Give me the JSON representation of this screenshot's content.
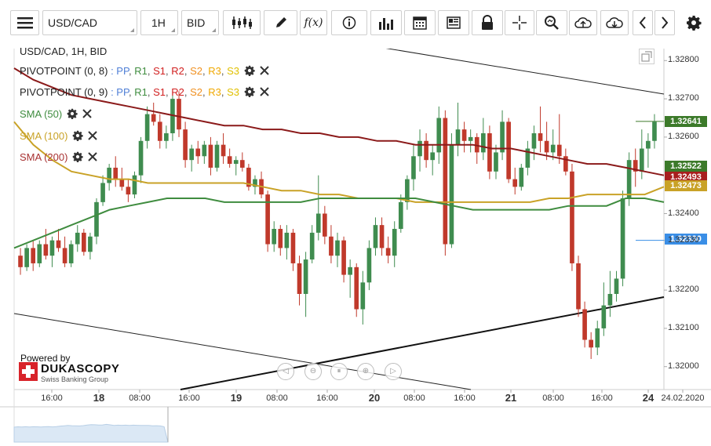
{
  "toolbar": {
    "menu_icon": "hamburger-icon",
    "instrument": "USD/CAD",
    "period": "1H",
    "side": "BID",
    "icons": [
      "candles-icon",
      "pencil-icon",
      "function-icon",
      "info-icon",
      "bar-chart-icon",
      "calendar-icon",
      "news-icon",
      "lock-icon",
      "crosshair-icon",
      "zoom-icon",
      "upload-icon",
      "download-icon",
      "chevron-left-icon",
      "chevron-right-icon",
      "gear-icon"
    ]
  },
  "chart_header": "USD/CAD, 1H, BID",
  "legend": [
    {
      "name": "PIVOTPOINT (0, 8)",
      "color": "#8b1a1a",
      "levels_prefix": ": "
    },
    {
      "name": "PIVOTPOINT (0, 9)",
      "color": "#8b1a1a",
      "levels_prefix": ": "
    },
    {
      "name": "SMA (50)",
      "color": "#3f8c3f"
    },
    {
      "name": "SMA (100)",
      "color": "#c9a227"
    },
    {
      "name": "SMA (200)",
      "color": "#a83232"
    }
  ],
  "pivot_levels": [
    {
      "label": "PP",
      "color": "#4f7fd6"
    },
    {
      "label": "R1",
      "color": "#3f8c3f"
    },
    {
      "label": "S1",
      "color": "#d11f1f"
    },
    {
      "label": "R2",
      "color": "#d11f1f"
    },
    {
      "label": "S2",
      "color": "#f09020"
    },
    {
      "label": "R3",
      "color": "#f0a800"
    },
    {
      "label": "S3",
      "color": "#e0c000"
    }
  ],
  "branding": {
    "powered_by": "Powered by",
    "brand": "DUKASCOPY",
    "tagline": "Swiss Banking Group"
  },
  "price_badges": [
    {
      "value": "1.32641",
      "color": "#3c7a2a"
    },
    {
      "value": "1.32522",
      "color": "#3c7a2a"
    },
    {
      "value": "1.32493",
      "color": "#a81e1e"
    },
    {
      "value": "1.32473",
      "color": "#c9a227"
    },
    {
      "value": "1.32330",
      "color": "#3a8ee6"
    }
  ],
  "colors": {
    "up": "#3f8c4f",
    "down": "#c0392b",
    "sma50": "#3f8c3f",
    "sma100": "#c9a227",
    "sma200": "#8b1a1a"
  },
  "chart_data": {
    "type": "candlestick",
    "title": "USD/CAD, 1H, BID",
    "y_ticks": [
      "1.32800",
      "1.32700",
      "1.32600",
      "1.32400",
      "1.32330",
      "1.32200",
      "1.32100",
      "1.32000"
    ],
    "ylim": [
      1.3194,
      1.3286
    ],
    "x_ticks": [
      "16:00",
      "18",
      "08:00",
      "16:00",
      "19",
      "08:00",
      "16:00",
      "20",
      "08:00",
      "16:00",
      "21",
      "08:00",
      "16:00",
      "24",
      "24.02.2020"
    ],
    "current_price": 1.32641,
    "horizontal_line": 1.3233,
    "ohlc": [
      [
        1.3229,
        1.3231,
        1.3224,
        1.3226
      ],
      [
        1.3226,
        1.3232,
        1.3225,
        1.3231
      ],
      [
        1.3231,
        1.3233,
        1.3225,
        1.3227
      ],
      [
        1.3227,
        1.3233,
        1.3226,
        1.3232
      ],
      [
        1.3232,
        1.3236,
        1.3228,
        1.3229
      ],
      [
        1.3229,
        1.3234,
        1.3226,
        1.3233
      ],
      [
        1.3233,
        1.3236,
        1.323,
        1.3231
      ],
      [
        1.3231,
        1.3234,
        1.3226,
        1.3227
      ],
      [
        1.3227,
        1.3233,
        1.3226,
        1.3232
      ],
      [
        1.3232,
        1.3237,
        1.323,
        1.3235
      ],
      [
        1.3235,
        1.3236,
        1.3229,
        1.323
      ],
      [
        1.323,
        1.3235,
        1.3228,
        1.3234
      ],
      [
        1.3234,
        1.3244,
        1.3232,
        1.3243
      ],
      [
        1.3243,
        1.325,
        1.3242,
        1.3248
      ],
      [
        1.3248,
        1.3253,
        1.3246,
        1.3252
      ],
      [
        1.3252,
        1.3255,
        1.3247,
        1.3249
      ],
      [
        1.3249,
        1.3252,
        1.3246,
        1.3247
      ],
      [
        1.3247,
        1.3249,
        1.3243,
        1.3245
      ],
      [
        1.3245,
        1.3251,
        1.3244,
        1.325
      ],
      [
        1.325,
        1.326,
        1.3248,
        1.3259
      ],
      [
        1.3259,
        1.3268,
        1.3257,
        1.3266
      ],
      [
        1.3266,
        1.3269,
        1.3263,
        1.3264
      ],
      [
        1.3264,
        1.3266,
        1.3257,
        1.3259
      ],
      [
        1.3259,
        1.3263,
        1.3257,
        1.3261
      ],
      [
        1.3261,
        1.3272,
        1.3259,
        1.327
      ],
      [
        1.327,
        1.3272,
        1.326,
        1.3262
      ],
      [
        1.3262,
        1.3264,
        1.3252,
        1.3254
      ],
      [
        1.3254,
        1.3258,
        1.3251,
        1.3257
      ],
      [
        1.3257,
        1.3259,
        1.3253,
        1.3255
      ],
      [
        1.3255,
        1.3259,
        1.3253,
        1.3258
      ],
      [
        1.3258,
        1.326,
        1.325,
        1.3252
      ],
      [
        1.3252,
        1.3259,
        1.3251,
        1.3258
      ],
      [
        1.3258,
        1.3261,
        1.3253,
        1.3255
      ],
      [
        1.3255,
        1.3257,
        1.3252,
        1.3253
      ],
      [
        1.3253,
        1.3255,
        1.325,
        1.3254
      ],
      [
        1.3254,
        1.3256,
        1.3251,
        1.3252
      ],
      [
        1.3252,
        1.3253,
        1.3246,
        1.3247
      ],
      [
        1.3247,
        1.325,
        1.3245,
        1.3249
      ],
      [
        1.3249,
        1.3251,
        1.3244,
        1.3245
      ],
      [
        1.3245,
        1.3246,
        1.323,
        1.3232
      ],
      [
        1.3232,
        1.3238,
        1.323,
        1.3236
      ],
      [
        1.3236,
        1.3237,
        1.3229,
        1.3231
      ],
      [
        1.3231,
        1.3237,
        1.3228,
        1.3235
      ],
      [
        1.3235,
        1.3236,
        1.3225,
        1.3227
      ],
      [
        1.3227,
        1.3229,
        1.3216,
        1.3219
      ],
      [
        1.3219,
        1.323,
        1.3213,
        1.3228
      ],
      [
        1.3228,
        1.3237,
        1.3227,
        1.3235
      ],
      [
        1.3235,
        1.325,
        1.3233,
        1.324
      ],
      [
        1.324,
        1.3242,
        1.3232,
        1.3234
      ],
      [
        1.3234,
        1.3237,
        1.3227,
        1.3229
      ],
      [
        1.3229,
        1.3235,
        1.3226,
        1.3233
      ],
      [
        1.3233,
        1.3234,
        1.3222,
        1.3224
      ],
      [
        1.3224,
        1.3228,
        1.3218,
        1.3226
      ],
      [
        1.3226,
        1.3227,
        1.3213,
        1.3215
      ],
      [
        1.3215,
        1.3225,
        1.3211,
        1.3222
      ],
      [
        1.3222,
        1.3233,
        1.322,
        1.3231
      ],
      [
        1.3231,
        1.3239,
        1.3229,
        1.3237
      ],
      [
        1.3237,
        1.3239,
        1.3229,
        1.3231
      ],
      [
        1.3231,
        1.3234,
        1.3227,
        1.3229
      ],
      [
        1.3229,
        1.3238,
        1.3226,
        1.3236
      ],
      [
        1.3236,
        1.3245,
        1.3235,
        1.3243
      ],
      [
        1.3243,
        1.325,
        1.3241,
        1.3249
      ],
      [
        1.3249,
        1.3258,
        1.3246,
        1.3255
      ],
      [
        1.3255,
        1.3262,
        1.3251,
        1.3259
      ],
      [
        1.3259,
        1.3261,
        1.3252,
        1.3254
      ],
      [
        1.3254,
        1.3258,
        1.325,
        1.3256
      ],
      [
        1.3256,
        1.3268,
        1.3253,
        1.3265
      ],
      [
        1.3265,
        1.3267,
        1.3229,
        1.3232
      ],
      [
        1.3232,
        1.3261,
        1.3231,
        1.3258
      ],
      [
        1.3258,
        1.3269,
        1.3255,
        1.3262
      ],
      [
        1.3262,
        1.3264,
        1.3256,
        1.3259
      ],
      [
        1.3259,
        1.3262,
        1.3256,
        1.326
      ],
      [
        1.326,
        1.3261,
        1.3253,
        1.3256
      ],
      [
        1.3256,
        1.3265,
        1.3254,
        1.3261
      ],
      [
        1.3261,
        1.3263,
        1.3249,
        1.3251
      ],
      [
        1.3251,
        1.3258,
        1.3249,
        1.3256
      ],
      [
        1.3256,
        1.3267,
        1.3254,
        1.3264
      ],
      [
        1.3264,
        1.3265,
        1.3248,
        1.3249
      ],
      [
        1.3249,
        1.3252,
        1.3245,
        1.3247
      ],
      [
        1.3247,
        1.3253,
        1.3246,
        1.3252
      ],
      [
        1.3252,
        1.3259,
        1.325,
        1.3257
      ],
      [
        1.3257,
        1.3263,
        1.3254,
        1.3261
      ],
      [
        1.3261,
        1.3268,
        1.3256,
        1.3259
      ],
      [
        1.3259,
        1.3264,
        1.3254,
        1.3256
      ],
      [
        1.3256,
        1.3262,
        1.3254,
        1.3258
      ],
      [
        1.3258,
        1.3266,
        1.3253,
        1.3255
      ],
      [
        1.3255,
        1.3257,
        1.325,
        1.3251
      ],
      [
        1.3251,
        1.3253,
        1.3225,
        1.3227
      ],
      [
        1.3227,
        1.3229,
        1.3213,
        1.3215
      ],
      [
        1.3215,
        1.3217,
        1.3205,
        1.3207
      ],
      [
        1.3207,
        1.3209,
        1.3202,
        1.3205
      ],
      [
        1.3205,
        1.3212,
        1.3203,
        1.321
      ],
      [
        1.321,
        1.3222,
        1.3208,
        1.3216
      ],
      [
        1.3216,
        1.3225,
        1.3213,
        1.3219
      ],
      [
        1.3219,
        1.3225,
        1.3217,
        1.3223
      ],
      [
        1.3223,
        1.3246,
        1.3221,
        1.3244
      ],
      [
        1.3244,
        1.3256,
        1.3242,
        1.3254
      ],
      [
        1.3254,
        1.3257,
        1.3247,
        1.3251
      ],
      [
        1.3251,
        1.3262,
        1.3249,
        1.3257
      ],
      [
        1.3257,
        1.3261,
        1.3252,
        1.3259
      ],
      [
        1.3259,
        1.3266,
        1.3257,
        1.3264
      ]
    ],
    "sma50": [
      1.3231,
      1.3233,
      1.3235,
      1.3237,
      1.3239,
      1.3241,
      1.3242,
      1.3243,
      1.3244,
      1.3244,
      1.3244,
      1.3243,
      1.3243,
      1.3243,
      1.3243,
      1.3243,
      1.3244,
      1.3244,
      1.3244,
      1.3244,
      1.3244,
      1.3244,
      1.3243,
      1.3242,
      1.3241,
      1.3241,
      1.3241,
      1.3241,
      1.3241,
      1.3242,
      1.3242,
      1.3242,
      1.3244,
      1.3244,
      1.3243
    ],
    "sma100": [
      1.3264,
      1.3258,
      1.3254,
      1.3251,
      1.325,
      1.3249,
      1.3249,
      1.3248,
      1.3248,
      1.3248,
      1.3248,
      1.3248,
      1.3248,
      1.3247,
      1.3246,
      1.3246,
      1.3245,
      1.3245,
      1.3244,
      1.3244,
      1.3244,
      1.3243,
      1.3243,
      1.3243,
      1.3243,
      1.3243,
      1.3243,
      1.3243,
      1.3244,
      1.3244,
      1.3245,
      1.3245,
      1.3245,
      1.3245,
      1.3247
    ],
    "sma200": [
      1.3278,
      1.3275,
      1.3273,
      1.3271,
      1.327,
      1.3269,
      1.3268,
      1.3267,
      1.3266,
      1.3265,
      1.3264,
      1.3263,
      1.3263,
      1.3262,
      1.3262,
      1.3261,
      1.3261,
      1.326,
      1.326,
      1.3259,
      1.3259,
      1.3258,
      1.3258,
      1.3258,
      1.3258,
      1.3257,
      1.3257,
      1.3256,
      1.3255,
      1.3254,
      1.3253,
      1.3253,
      1.3252,
      1.3251,
      1.325
    ]
  }
}
